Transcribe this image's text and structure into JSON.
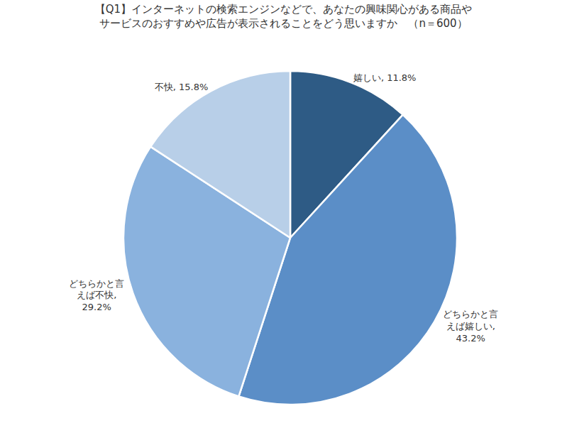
{
  "chart_data": {
    "type": "pie",
    "title": "【Q1】インターネットの検索エンジンなどで、あなたの興味関心がある商品や\nサービスのおすすめや広告が表示されることをどう思いますか　（n＝600）",
    "categories": [
      "嬉しい",
      "どちらかと言\nえば嬉しい",
      "どちらかと言\nえば不快",
      "不快"
    ],
    "values": [
      11.8,
      43.2,
      29.2,
      15.8
    ],
    "value_labels": [
      "嬉しい, 11.8%",
      "どちらかと言\nえば嬉しい,\n43.2%",
      "どちらかと言\nえば不快,\n29.2%",
      "不快, 15.8%"
    ],
    "colors": [
      "#2e5b85",
      "#5b8ec7",
      "#8ab2de",
      "#b8cfe8"
    ],
    "data_labels": true
  }
}
